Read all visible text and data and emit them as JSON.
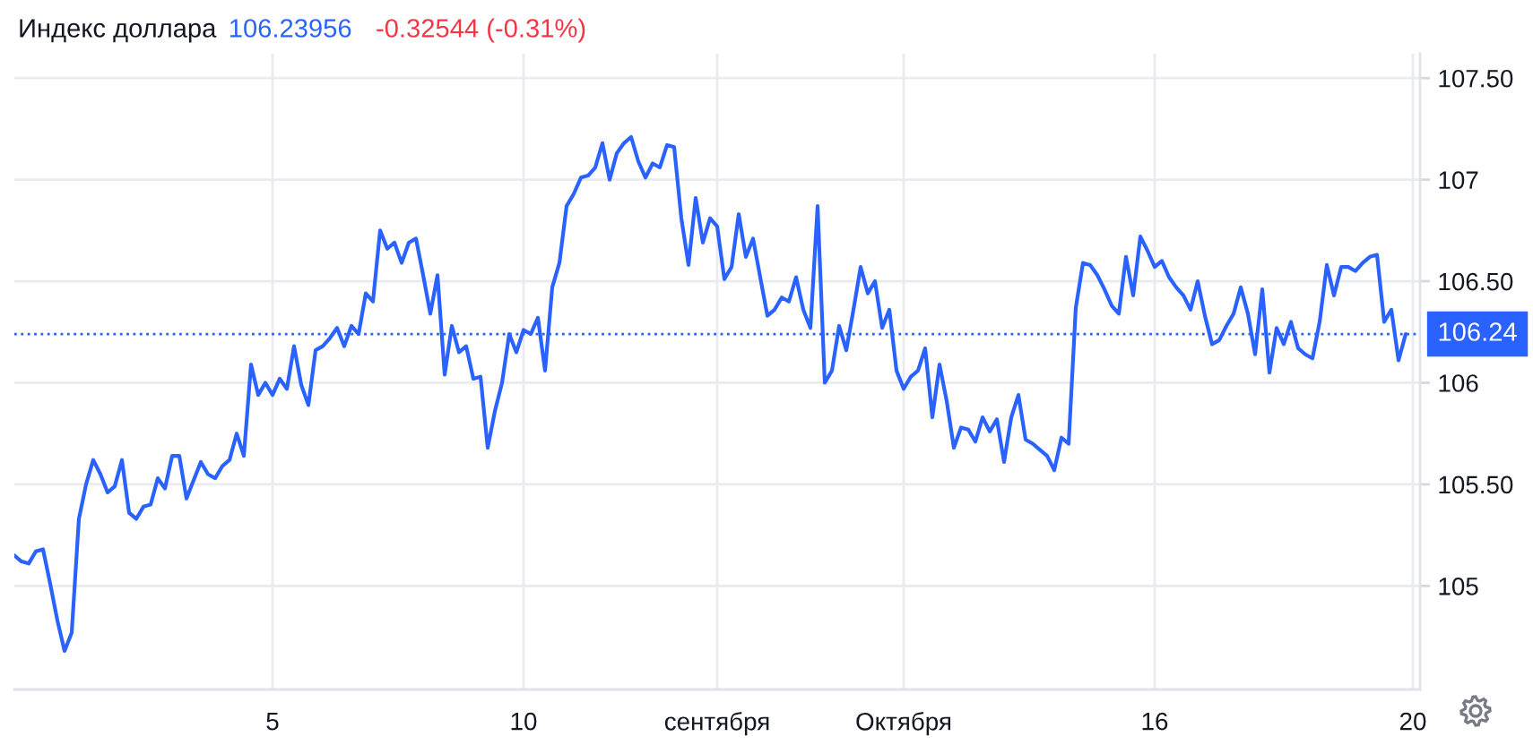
{
  "chart_data": {
    "type": "line",
    "title": "Индекс доллара",
    "annotations": [
      "106.23956",
      "-0.32544 (-0.31%)"
    ],
    "categories": [
      null,
      null,
      null,
      null,
      null,
      null,
      null,
      null,
      null,
      null,
      null,
      null,
      null,
      null,
      null,
      null,
      null,
      null,
      null,
      null,
      null,
      null,
      null,
      null,
      null,
      null,
      null,
      null,
      null,
      null,
      null,
      null,
      null,
      null,
      null,
      null,
      "5",
      null,
      null,
      null,
      null,
      null,
      null,
      null,
      null,
      null,
      null,
      null,
      null,
      null,
      null,
      null,
      null,
      null,
      null,
      null,
      null,
      null,
      null,
      null,
      null,
      null,
      null,
      null,
      null,
      null,
      null,
      null,
      null,
      null,
      null,
      "10",
      null,
      null,
      null,
      null,
      null,
      null,
      null,
      null,
      null,
      null,
      null,
      null,
      null,
      null,
      null,
      null,
      null,
      null,
      null,
      null,
      null,
      null,
      null,
      null,
      null,
      null,
      "сентября",
      null,
      null,
      null,
      null,
      null,
      null,
      null,
      null,
      null,
      null,
      null,
      null,
      null,
      null,
      null,
      null,
      null,
      null,
      null,
      null,
      null,
      null,
      null,
      null,
      null,
      "Октября",
      null,
      null,
      null,
      null,
      null,
      null,
      null,
      null,
      null,
      null,
      null,
      null,
      null,
      null,
      null,
      null,
      null,
      null,
      null,
      null,
      null,
      null,
      null,
      null,
      null,
      null,
      null,
      null,
      null,
      null,
      null,
      null,
      null,
      null,
      "16",
      null,
      null,
      null,
      null,
      null,
      null,
      null,
      null,
      null,
      null,
      null,
      null,
      null,
      null,
      null,
      null,
      null,
      null,
      null,
      null,
      null,
      null,
      null,
      null,
      null,
      null,
      null,
      null,
      null,
      null,
      null,
      null,
      null,
      null,
      null,
      "20"
    ],
    "series": [
      {
        "color": "#2962ff",
        "values": [
          105.15,
          105.12,
          105.11,
          105.17,
          105.18,
          105.01,
          104.83,
          104.68,
          104.77,
          105.33,
          105.5,
          105.62,
          105.55,
          105.46,
          105.49,
          105.62,
          105.36,
          105.33,
          105.39,
          105.4,
          105.53,
          105.48,
          105.64,
          105.64,
          105.43,
          105.52,
          105.61,
          105.55,
          105.53,
          105.59,
          105.62,
          105.75,
          105.64,
          106.09,
          105.94,
          106.0,
          105.94,
          106.02,
          105.97,
          106.18,
          105.99,
          105.89,
          106.16,
          106.18,
          106.22,
          106.27,
          106.18,
          106.28,
          106.24,
          106.44,
          106.4,
          106.75,
          106.66,
          106.69,
          106.59,
          106.69,
          106.71,
          106.53,
          106.34,
          106.53,
          106.04,
          106.28,
          106.15,
          106.18,
          106.02,
          106.03,
          105.68,
          105.86,
          106.0,
          106.24,
          106.15,
          106.26,
          106.24,
          106.32,
          106.06,
          106.47,
          106.59,
          106.87,
          106.93,
          107.01,
          107.02,
          107.06,
          107.18,
          107.0,
          107.13,
          107.18,
          107.21,
          107.09,
          107.01,
          107.08,
          107.06,
          107.17,
          107.16,
          106.81,
          106.58,
          106.91,
          106.69,
          106.81,
          106.77,
          106.51,
          106.57,
          106.83,
          106.62,
          106.71,
          106.52,
          106.33,
          106.36,
          106.42,
          106.4,
          106.52,
          106.36,
          106.27,
          106.87,
          106.0,
          106.06,
          106.28,
          106.16,
          106.36,
          106.57,
          106.44,
          106.5,
          106.27,
          106.36,
          106.06,
          105.97,
          106.03,
          106.06,
          106.17,
          105.83,
          106.09,
          105.91,
          105.68,
          105.78,
          105.77,
          105.71,
          105.83,
          105.76,
          105.82,
          105.61,
          105.83,
          105.94,
          105.72,
          105.7,
          105.67,
          105.64,
          105.57,
          105.73,
          105.7,
          106.37,
          106.59,
          106.58,
          106.53,
          106.46,
          106.38,
          106.34,
          106.62,
          106.43,
          106.72,
          106.65,
          106.57,
          106.6,
          106.52,
          106.47,
          106.43,
          106.36,
          106.5,
          106.33,
          106.19,
          106.21,
          106.28,
          106.34,
          106.47,
          106.34,
          106.14,
          106.46,
          106.05,
          106.27,
          106.19,
          106.3,
          106.17,
          106.14,
          106.12,
          106.3,
          106.58,
          106.43,
          106.57,
          106.57,
          106.55,
          106.59,
          106.62,
          106.63,
          106.3,
          106.36,
          106.11,
          106.24,
          null
        ]
      }
    ],
    "ylim": [
      104.49,
      107.62
    ],
    "yticks": [
      105,
      {
        "value": 105.5,
        "label": "105.50"
      },
      106,
      {
        "value": 106.5,
        "label": "106.50"
      },
      107,
      {
        "value": 107.5,
        "label": "107.50"
      }
    ],
    "grid": true,
    "ref_lines": [
      {
        "axis": "y",
        "value": 106.24,
        "label": "106.24",
        "color": "#2962ff",
        "line_style": "dotted"
      }
    ]
  }
}
